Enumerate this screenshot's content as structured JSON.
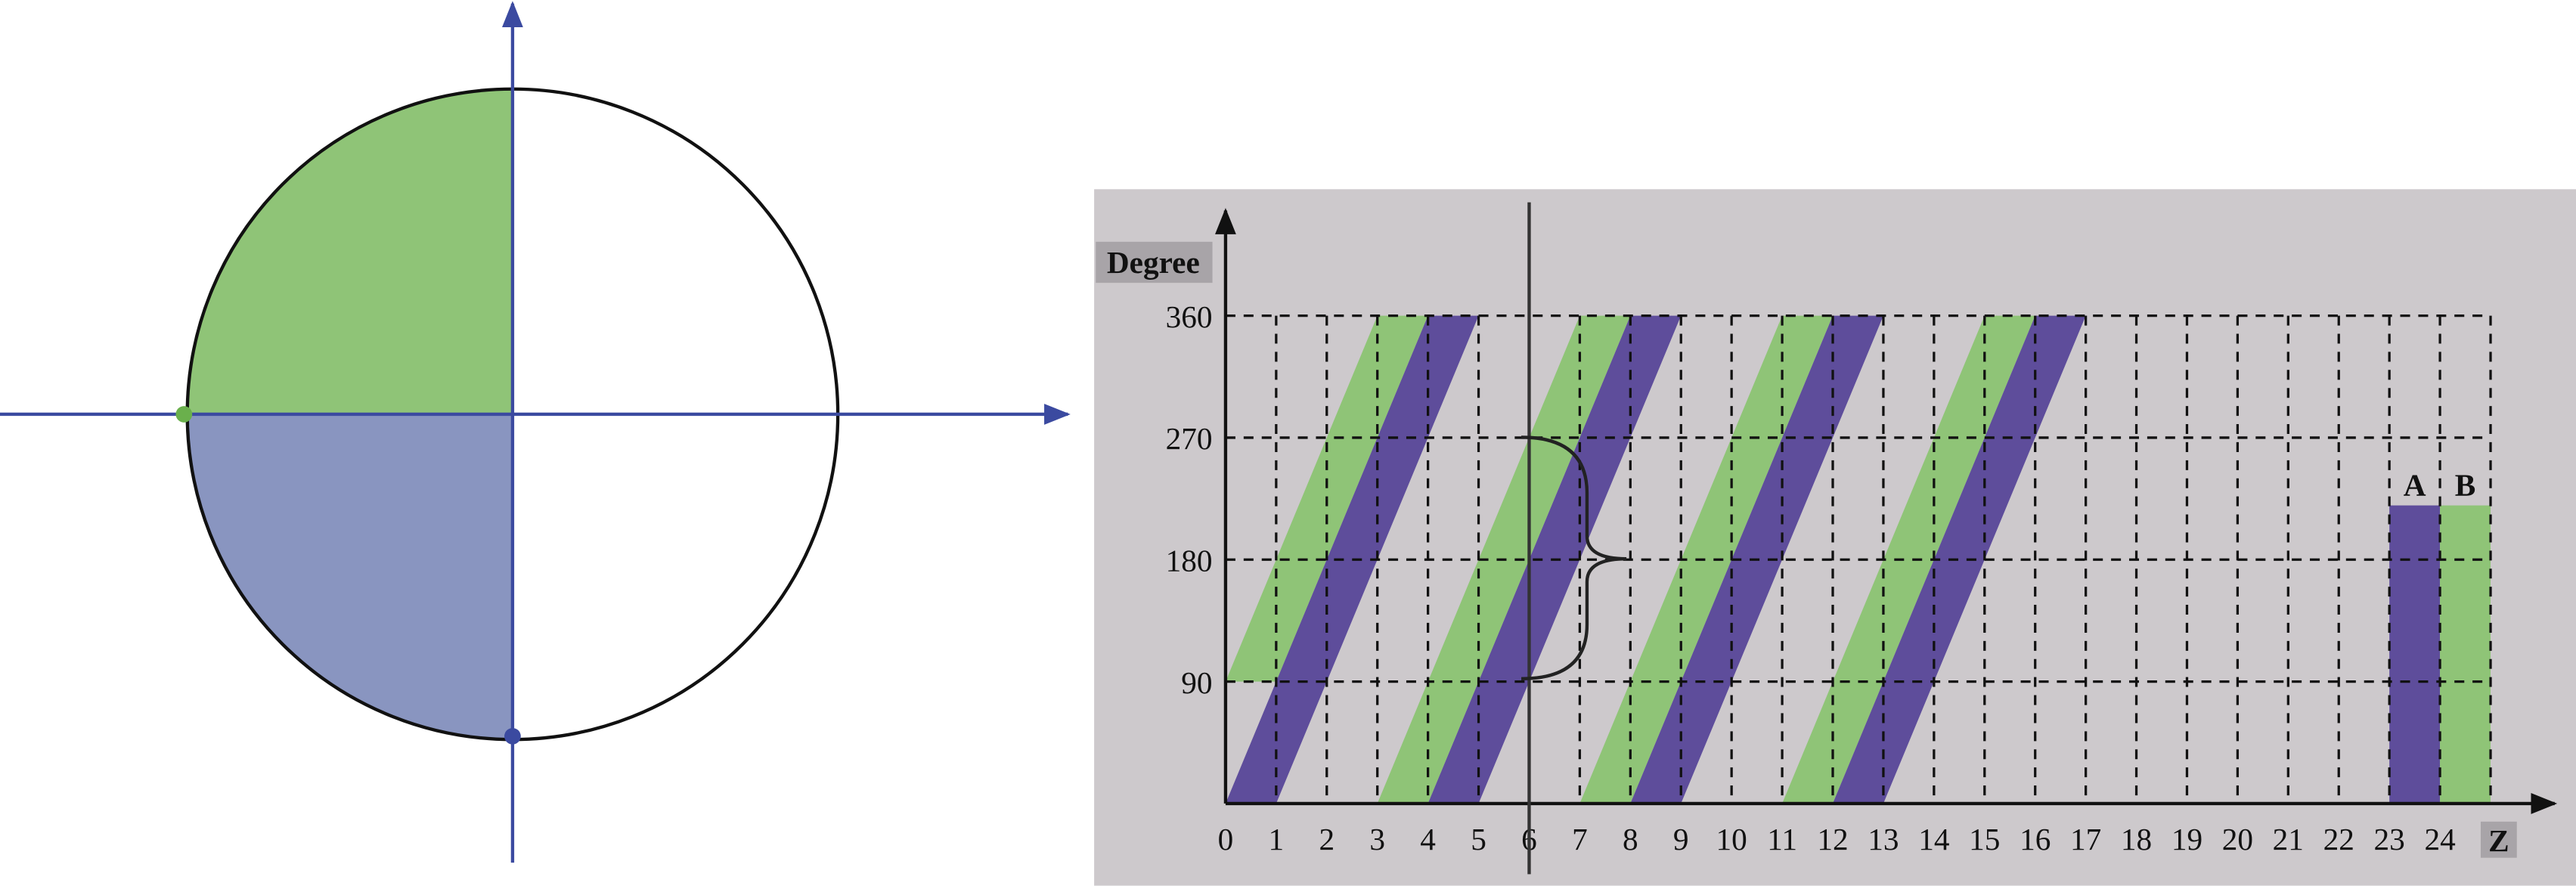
{
  "chart": {
    "y_label": "Degree",
    "x_label": "Z",
    "xlim": [
      0,
      25
    ],
    "ylim": [
      0,
      360
    ],
    "xticks": [
      0,
      1,
      2,
      3,
      4,
      5,
      6,
      7,
      8,
      9,
      10,
      11,
      12,
      13,
      14,
      15,
      16,
      17,
      18,
      19,
      20,
      21,
      22,
      23,
      24
    ],
    "yticks": [
      90,
      180,
      270,
      360
    ],
    "marker_line_x": 6,
    "bands": [
      {
        "color": "#8fc477",
        "points": [
          [
            0,
            90
          ],
          [
            1,
            90
          ],
          [
            4,
            360
          ],
          [
            3,
            360
          ]
        ]
      },
      {
        "color": "#5e4d9b",
        "points": [
          [
            0,
            0
          ],
          [
            1,
            0
          ],
          [
            5,
            360
          ],
          [
            4,
            360
          ]
        ]
      },
      {
        "color": "#8fc477",
        "points": [
          [
            3,
            0
          ],
          [
            4,
            0
          ],
          [
            8,
            360
          ],
          [
            7,
            360
          ]
        ]
      },
      {
        "color": "#5e4d9b",
        "points": [
          [
            4,
            0
          ],
          [
            5,
            0
          ],
          [
            9,
            360
          ],
          [
            8,
            360
          ]
        ]
      },
      {
        "color": "#8fc477",
        "points": [
          [
            7,
            0
          ],
          [
            8,
            0
          ],
          [
            12,
            360
          ],
          [
            11,
            360
          ]
        ]
      },
      {
        "color": "#5e4d9b",
        "points": [
          [
            8,
            0
          ],
          [
            9,
            0
          ],
          [
            13,
            360
          ],
          [
            12,
            360
          ]
        ]
      },
      {
        "color": "#8fc477",
        "points": [
          [
            11,
            0
          ],
          [
            12,
            0
          ],
          [
            16,
            360
          ],
          [
            15,
            360
          ]
        ]
      },
      {
        "color": "#5e4d9b",
        "points": [
          [
            12,
            0
          ],
          [
            13,
            0
          ],
          [
            17,
            360
          ],
          [
            16,
            360
          ]
        ]
      }
    ],
    "bars": [
      {
        "label": "A",
        "x": 23,
        "value": 220,
        "color": "#5e4d9b"
      },
      {
        "label": "B",
        "x": 24,
        "value": 220,
        "color": "#8fc477"
      }
    ]
  }
}
